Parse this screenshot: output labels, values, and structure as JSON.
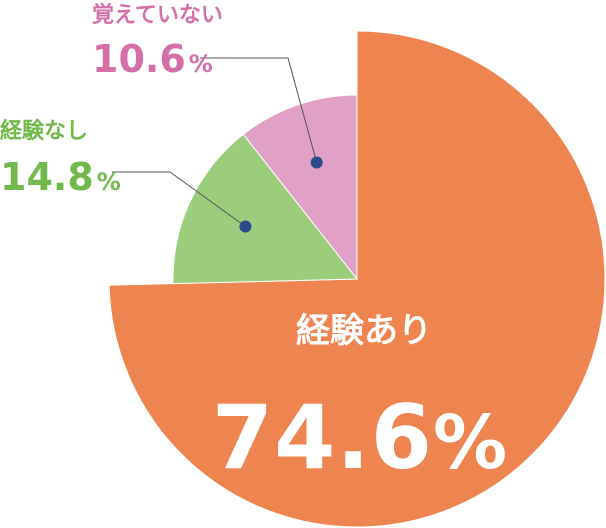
{
  "chart_data": {
    "type": "pie",
    "title": "",
    "slices": [
      {
        "label": "経験あり",
        "value": 74.6,
        "display": "74.6",
        "unit": "%",
        "color": "#ee844f"
      },
      {
        "label": "経験なし",
        "value": 14.8,
        "display": "14.8",
        "unit": "%",
        "color": "#9ccd7c"
      },
      {
        "label": "覚えていない",
        "value": 10.6,
        "display": "10.6",
        "unit": "%",
        "color": "#e1a1c7"
      }
    ],
    "label_colors": {
      "経験あり": "#ffffff",
      "経験なし": "#72b84a",
      "覚えていない": "#d46fa8"
    },
    "leader_dot_color": "#2d4a8c",
    "leader_line_color": "#555555",
    "exploded_slice": "経験あり",
    "start": "12 o'clock",
    "direction": "clockwise"
  }
}
